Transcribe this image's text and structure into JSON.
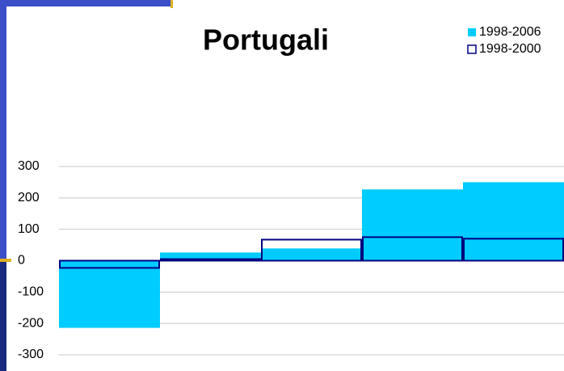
{
  "chart_data": {
    "type": "bar",
    "title": "Portugali",
    "categories": [
      null,
      null,
      null,
      null,
      null
    ],
    "series": [
      {
        "name": "1998-2006",
        "color": "#00ccff",
        "outline": false,
        "values": [
          -214,
          26,
          39,
          227,
          250
        ]
      },
      {
        "name": "1998-2000",
        "color": "#000080",
        "outline": true,
        "values": [
          -23,
          5,
          67,
          75,
          70
        ]
      }
    ],
    "ylim": [
      -300,
      300
    ],
    "yticks": [
      -300,
      -200,
      -100,
      0,
      100,
      200,
      300
    ],
    "grid": true,
    "legend": "top-right"
  }
}
